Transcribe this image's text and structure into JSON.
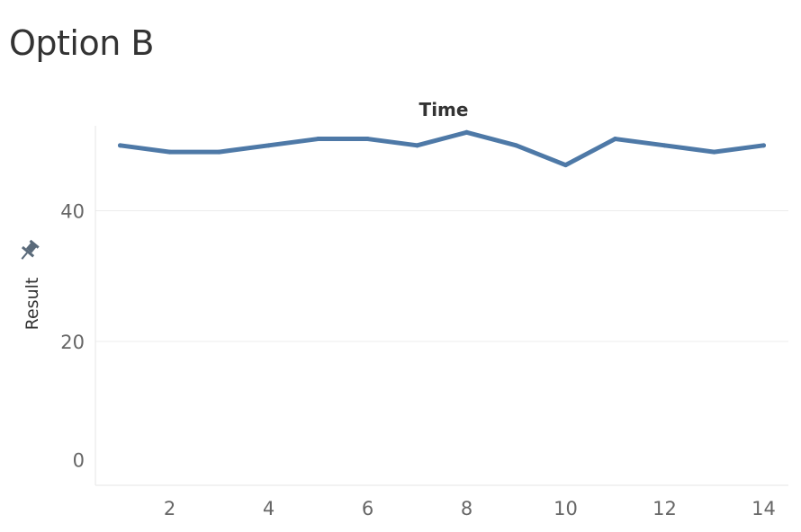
{
  "chart_data": {
    "type": "line",
    "title": "Option B",
    "xlabel": "Time",
    "ylabel": "Result",
    "x": [
      1,
      2,
      3,
      4,
      5,
      6,
      7,
      8,
      9,
      10,
      11,
      12,
      13,
      14
    ],
    "series": [
      {
        "values": [
          50,
          49,
          49,
          50,
          51,
          51,
          50,
          52,
          50,
          47,
          51,
          50,
          49,
          50
        ],
        "color": "#4e79a7"
      }
    ],
    "xticks": [
      2,
      4,
      6,
      8,
      10,
      12,
      14
    ],
    "yticks": [
      0,
      20,
      40
    ],
    "xlim": [
      0.5,
      14.5
    ],
    "ylim": [
      -2,
      53
    ],
    "grid": "horizontal",
    "legend": "none",
    "icon": "pin-icon"
  }
}
